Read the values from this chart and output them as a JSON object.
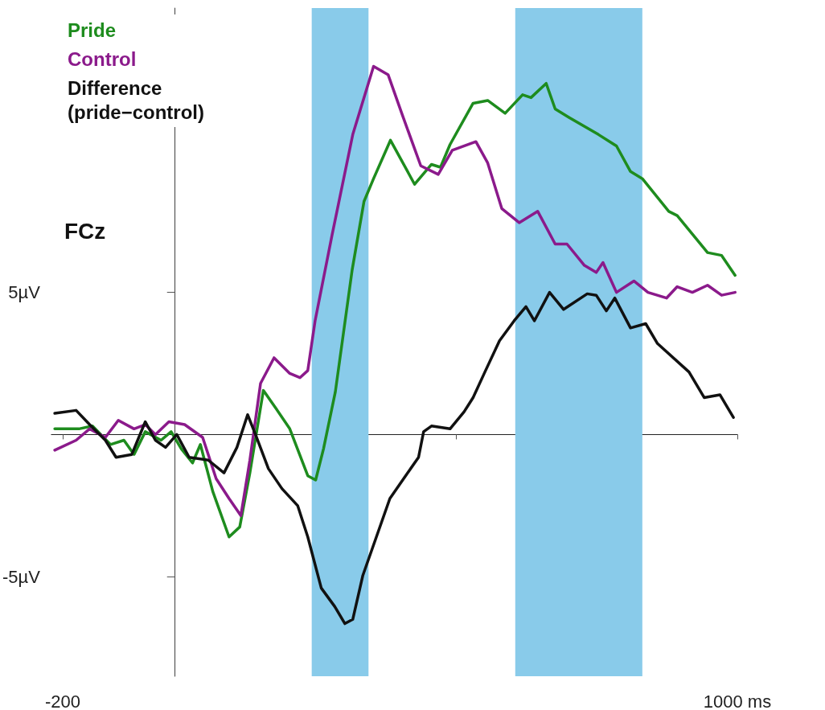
{
  "chart_data": {
    "type": "line",
    "title": "FCz",
    "xlim": [
      -220,
      1000
    ],
    "ylim": [
      -8.5,
      15
    ],
    "xticks": [
      {
        "value": -200,
        "label": "-200"
      },
      {
        "value": 500,
        "label": null
      },
      {
        "value": 1000,
        "label": "1000 ms"
      }
    ],
    "yticks": [
      {
        "value": -5,
        "label": "-5µV"
      },
      {
        "value": 5,
        "label": "5µV"
      }
    ],
    "grid": false,
    "legend": "top left",
    "marker": "none",
    "line_style": "solid",
    "bands": [
      {
        "axis": "x",
        "from": 243,
        "to": 344,
        "color": "#89cbea"
      },
      {
        "axis": "x",
        "from": 605,
        "to": 831,
        "color": "#89cbea"
      }
    ],
    "series": [
      {
        "name": "Pride",
        "color": "#1e8c1e",
        "x": [
          -214,
          -171,
          -147,
          -115,
          -91,
          -73,
          -53,
          -25,
          -7,
          11,
          31,
          45,
          67,
          96,
          115,
          133,
          157,
          180,
          204,
          236,
          250,
          264,
          285,
          315,
          336,
          353,
          383,
          426,
          456,
          472,
          489,
          530,
          556,
          587,
          618,
          633,
          660,
          676,
          701,
          753,
          785,
          810,
          831,
          878,
          893,
          947,
          972,
          996
        ],
        "values": [
          0.2,
          0.2,
          0.3,
          -0.35,
          -0.2,
          -0.7,
          0.1,
          -0.2,
          0.1,
          -0.5,
          -1.0,
          -0.35,
          -2.0,
          -3.6,
          -3.25,
          -1.35,
          1.55,
          0.9,
          0.2,
          -1.45,
          -1.6,
          -0.5,
          1.5,
          5.8,
          8.2,
          9.0,
          10.35,
          8.8,
          9.5,
          9.4,
          10.2,
          11.65,
          11.75,
          11.3,
          11.95,
          11.85,
          12.35,
          11.45,
          11.15,
          10.55,
          10.15,
          9.25,
          9.0,
          7.85,
          7.7,
          6.4,
          6.3,
          5.6
        ]
      },
      {
        "name": "Control",
        "color": "#8b1a8b",
        "x": [
          -214,
          -176,
          -152,
          -124,
          -101,
          -73,
          -53,
          -35,
          -11,
          17,
          49,
          73,
          96,
          117,
          133,
          152,
          176,
          204,
          222,
          236,
          249,
          279,
          316,
          353,
          379,
          404,
          437,
          468,
          493,
          535,
          556,
          581,
          612,
          645,
          676,
          697,
          728,
          749,
          761,
          785,
          816,
          841,
          874,
          893,
          920,
          947,
          972,
          996
        ],
        "values": [
          -0.55,
          -0.2,
          0.2,
          -0.1,
          0.5,
          0.2,
          0.35,
          0,
          0.45,
          0.35,
          -0.1,
          -1.55,
          -2.25,
          -2.85,
          -0.9,
          1.8,
          2.7,
          2.15,
          2.0,
          2.25,
          4.0,
          7.0,
          10.55,
          12.95,
          12.65,
          11.25,
          9.45,
          9.15,
          10.0,
          10.3,
          9.55,
          7.95,
          7.45,
          7.85,
          6.7,
          6.7,
          5.95,
          5.7,
          6.05,
          5.0,
          5.4,
          5.0,
          4.8,
          5.2,
          5.0,
          5.25,
          4.9,
          5.0
        ]
      },
      {
        "name": "Difference (pride−control)",
        "color": "#111111",
        "x": [
          -214,
          -176,
          -152,
          -124,
          -105,
          -77,
          -53,
          -35,
          -17,
          3,
          25,
          59,
          87,
          110,
          129,
          143,
          166,
          190,
          218,
          236,
          260,
          284,
          302,
          316,
          334,
          358,
          382,
          410,
          433,
          442,
          456,
          489,
          514,
          530,
          551,
          577,
          603,
          624,
          639,
          666,
          691,
          733,
          749,
          767,
          782,
          810,
          837,
          858,
          914,
          941,
          969,
          993
        ],
        "values": [
          0.75,
          0.85,
          0.35,
          -0.2,
          -0.8,
          -0.7,
          0.45,
          -0.2,
          -0.45,
          0,
          -0.8,
          -0.9,
          -1.35,
          -0.45,
          0.7,
          0,
          -1.2,
          -1.9,
          -2.5,
          -3.6,
          -5.4,
          -6.05,
          -6.65,
          -6.5,
          -4.95,
          -3.6,
          -2.25,
          -1.45,
          -0.8,
          0.1,
          0.3,
          0.2,
          0.8,
          1.3,
          2.2,
          3.3,
          4.0,
          4.5,
          4.0,
          5.0,
          4.4,
          4.95,
          4.9,
          4.35,
          4.8,
          3.75,
          3.9,
          3.2,
          2.2,
          1.3,
          1.4,
          0.6
        ]
      }
    ]
  }
}
